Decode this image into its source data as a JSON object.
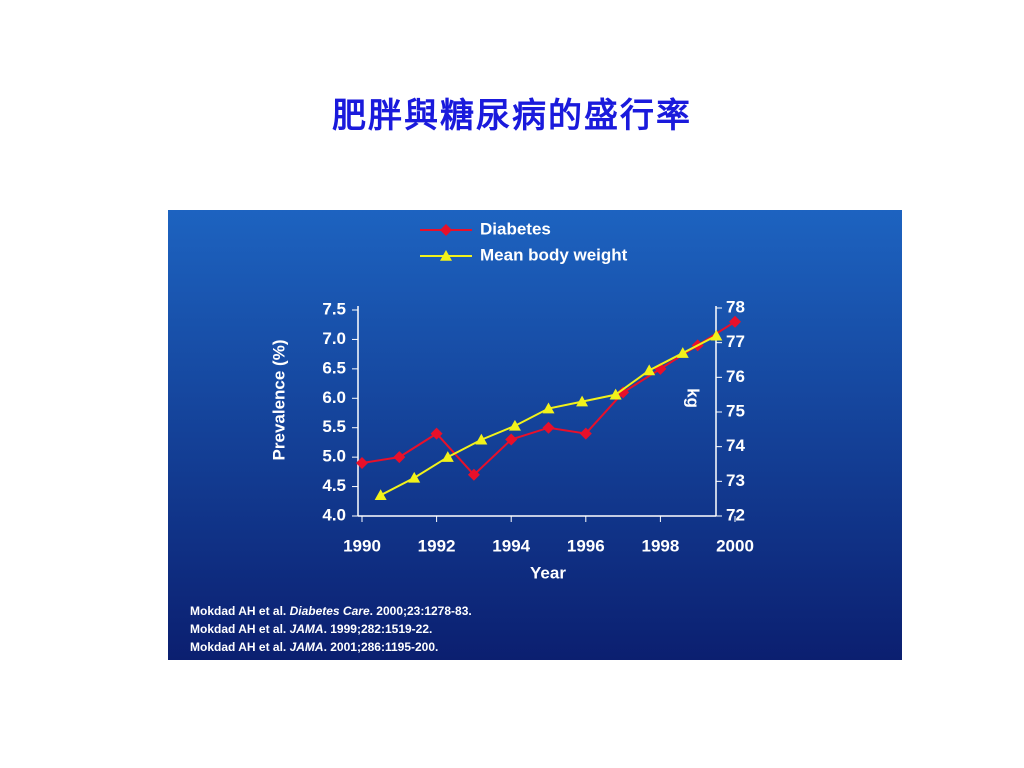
{
  "slide_title": "肥胖與糖尿病的盛行率",
  "chart_data": {
    "type": "line",
    "x_label": "Year",
    "y_label": "Prevalence (%)",
    "y2_label": "kg",
    "xlim": [
      1990,
      2000
    ],
    "xticks": [
      1990,
      1992,
      1994,
      1996,
      1998,
      2000
    ],
    "ylim": [
      4,
      7.5
    ],
    "yticks": [
      {
        "value": 4,
        "label": "4.0"
      },
      4.5,
      {
        "value": 5,
        "label": "5.0"
      },
      5.5,
      {
        "value": 6,
        "label": "6.0"
      },
      6.5,
      {
        "value": 7,
        "label": "7.0"
      },
      7.5
    ],
    "y2lim": [
      72,
      78
    ],
    "y2ticks": [
      72,
      73,
      74,
      75,
      76,
      77,
      78
    ],
    "series": [
      {
        "name": "Diabetes",
        "color": "#e8102a",
        "marker": "diamond",
        "x": [
          1990,
          1991,
          1992,
          1993,
          1994,
          1995,
          1996,
          1997,
          1998,
          1999,
          2000
        ],
        "values": [
          4.9,
          5.0,
          5.4,
          4.7,
          5.3,
          5.5,
          5.4,
          6.1,
          6.5,
          6.9,
          7.3
        ]
      },
      {
        "name": "Mean body weight",
        "color": "#f2f21a",
        "marker": "triangle",
        "axis": "y2",
        "x": [
          1990.5,
          1991.4,
          1992.3,
          1993.2,
          1994.1,
          1995.0,
          1995.9,
          1996.8,
          1997.7,
          1998.6,
          1999.5
        ],
        "values": [
          72.6,
          73.1,
          73.7,
          74.2,
          74.6,
          75.1,
          75.3,
          75.5,
          76.2,
          76.7,
          77.2
        ]
      }
    ],
    "notes": [
      [
        "Mokdad AH et al. ",
        "Diabetes Care",
        ". 2000;23:1278-83."
      ],
      [
        "Mokdad AH et al. ",
        "JAMA",
        ". 1999;282:1519-22."
      ],
      [
        "Mokdad AH et al. ",
        "JAMA",
        ". 2001;286:1195-200."
      ]
    ]
  }
}
